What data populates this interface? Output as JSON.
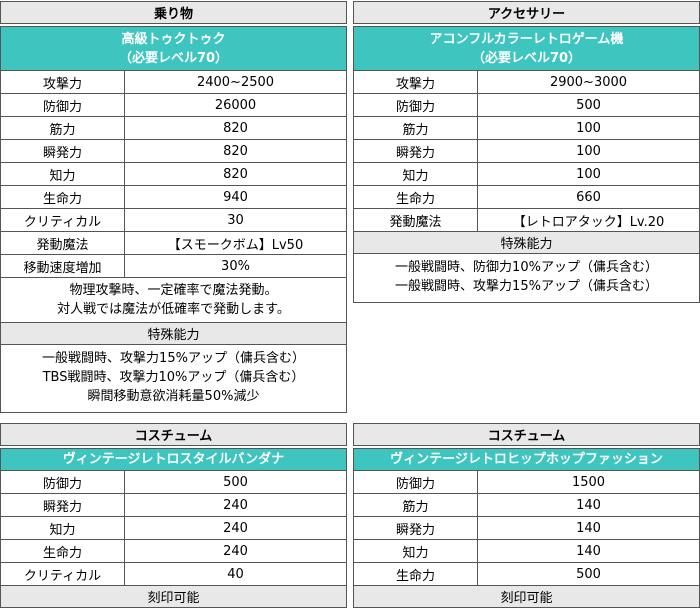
{
  "panels": {
    "vehicle": {
      "header": "乗り物",
      "title_line1": "高級トゥクトゥク",
      "title_line2": "（必要レベル70）",
      "rows": [
        {
          "label": "攻撃力",
          "value": "2400~2500"
        },
        {
          "label": "防御力",
          "value": "26000"
        },
        {
          "label": "筋力",
          "value": "820"
        },
        {
          "label": "瞬発力",
          "value": "820"
        },
        {
          "label": "知力",
          "value": "820"
        },
        {
          "label": "生命力",
          "value": "940"
        },
        {
          "label": "クリティカル",
          "value": "30"
        },
        {
          "label": "発動魔法",
          "value": "【スモークボム】Lv50"
        },
        {
          "label": "移動速度増加",
          "value": "30%"
        }
      ],
      "note_line1": "物理攻撃時、一定確率で魔法発動。",
      "note_line2": "対人戦では魔法が低確率で発動します。",
      "special_header": "特殊能力",
      "special_line1": "一般戦闘時、攻撃力15%アップ（傭兵含む）",
      "special_line2": "TBS戦闘時、攻撃力10%アップ（傭兵含む）",
      "special_line3": "瞬間移動意欲消耗量50%減少"
    },
    "accessory": {
      "header": "アクセサリー",
      "title_line1": "アコンフルカラーレトロゲーム機",
      "title_line2": "（必要レベル70）",
      "rows": [
        {
          "label": "攻撃力",
          "value": "2900~3000"
        },
        {
          "label": "防御力",
          "value": "500"
        },
        {
          "label": "筋力",
          "value": "100"
        },
        {
          "label": "瞬発力",
          "value": "100"
        },
        {
          "label": "知力",
          "value": "100"
        },
        {
          "label": "生命力",
          "value": "660"
        },
        {
          "label": "発動魔法",
          "value": "【レトロアタック】Lv.20"
        }
      ],
      "special_header": "特殊能力",
      "special_line1": "一般戦闘時、防御力10%アップ（傭兵含む）",
      "special_line2": "一般戦闘時、攻撃力15%アップ（傭兵含む）"
    },
    "costume_left": {
      "header": "コスチューム",
      "title": "ヴィンテージレトロスタイルバンダナ",
      "rows": [
        {
          "label": "防御力",
          "value": "500"
        },
        {
          "label": "瞬発力",
          "value": "240"
        },
        {
          "label": "知力",
          "value": "240"
        },
        {
          "label": "生命力",
          "value": "240"
        },
        {
          "label": "クリティカル",
          "value": "40"
        }
      ],
      "footer": "刻印可能"
    },
    "costume_right": {
      "header": "コスチューム",
      "title": "ヴィンテージレトロヒップホップファッション",
      "rows": [
        {
          "label": "防御力",
          "value": "1500"
        },
        {
          "label": "筋力",
          "value": "140"
        },
        {
          "label": "瞬発力",
          "value": "140"
        },
        {
          "label": "知力",
          "value": "140"
        },
        {
          "label": "生命力",
          "value": "500"
        }
      ],
      "footer": "刻印可能"
    }
  }
}
